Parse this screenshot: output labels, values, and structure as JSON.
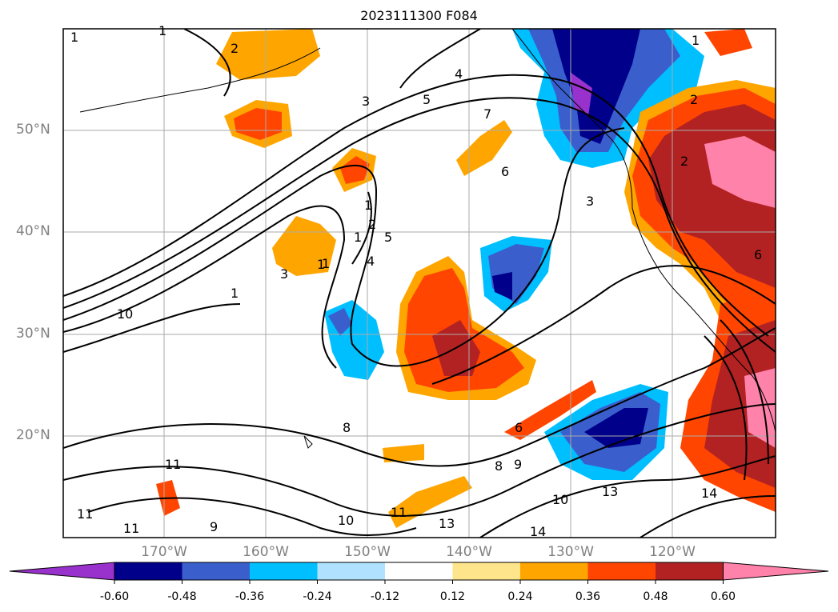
{
  "title": "2023111300 F084",
  "map": {
    "projection": "latitude-longitude (North Pacific)",
    "lat_labels": [
      "50°N",
      "40°N",
      "30°N",
      "20°N"
    ],
    "lon_labels": [
      "170°W",
      "160°W",
      "150°W",
      "140°W",
      "130°W",
      "120°W"
    ],
    "gridlines": true,
    "contour_color": "#000000",
    "contour_labels": [
      "1",
      "2",
      "3",
      "4",
      "5",
      "7",
      "6",
      "3",
      "2",
      "1",
      "1",
      "2",
      "1",
      "5",
      "1",
      "4",
      "3",
      "1",
      "10",
      "8",
      "11",
      "11",
      "9",
      "11",
      "10",
      "11",
      "13",
      "8",
      "9",
      "10",
      "13",
      "14",
      "6",
      "14",
      "6",
      "2",
      "1",
      "1"
    ]
  },
  "colorbar": {
    "levels": [
      "-0.60",
      "-0.48",
      "-0.36",
      "-0.24",
      "-0.12",
      "0.12",
      "0.24",
      "0.36",
      "0.48",
      "0.60"
    ],
    "colors": [
      "#9932cc",
      "#00008b",
      "#3a5fcd",
      "#00bfff",
      "#b0e2ff",
      "#ffffff",
      "#fee48b",
      "#ffa500",
      "#ff4500",
      "#b22222",
      "#ff82ab"
    ],
    "extend": "both"
  }
}
